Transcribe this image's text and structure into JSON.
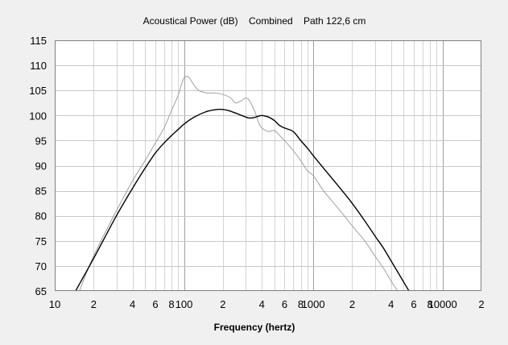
{
  "chart_data": {
    "type": "line",
    "title": "Acoustical Power (dB)    Combined    Path 122,6 cm",
    "xlabel": "Frequency (hertz)",
    "ylabel": "",
    "xscale": "log",
    "xlim": [
      10,
      20000
    ],
    "ylim": [
      65,
      115
    ],
    "grid": true,
    "legend": "none",
    "yticks": [
      "65",
      "70",
      "75",
      "80",
      "85",
      "90",
      "95",
      "100",
      "105",
      "110",
      "115"
    ],
    "xticks": [
      {
        "value": 10,
        "label": "10"
      },
      {
        "value": 20,
        "label": "2"
      },
      {
        "value": 40,
        "label": "4"
      },
      {
        "value": 60,
        "label": "6"
      },
      {
        "value": 80,
        "label": "8"
      },
      {
        "value": 100,
        "label": "100"
      },
      {
        "value": 200,
        "label": "2"
      },
      {
        "value": 400,
        "label": "4"
      },
      {
        "value": 600,
        "label": "6"
      },
      {
        "value": 800,
        "label": "8"
      },
      {
        "value": 1000,
        "label": "1000"
      },
      {
        "value": 2000,
        "label": "2"
      },
      {
        "value": 4000,
        "label": "4"
      },
      {
        "value": 6000,
        "label": "6"
      },
      {
        "value": 8000,
        "label": "8"
      },
      {
        "value": 10000,
        "label": "10000"
      },
      {
        "value": 20000,
        "label": "2"
      }
    ],
    "series": [
      {
        "color": "#a0a0a0",
        "x": [
          15.5,
          20,
          30,
          40,
          50,
          60,
          70,
          80,
          90,
          95,
          100,
          105,
          110,
          120,
          130,
          150,
          170,
          200,
          230,
          250,
          280,
          300,
          320,
          350,
          380,
          400,
          450,
          500,
          550,
          600,
          700,
          800,
          900,
          1000,
          1200,
          1500,
          1800,
          2000,
          2500,
          3000,
          3500,
          4000,
          4500
        ],
        "y": [
          65,
          72,
          81,
          87,
          91,
          94.5,
          97.5,
          101,
          104,
          106,
          107.5,
          107.8,
          107.5,
          106,
          105,
          104.5,
          104.5,
          104.2,
          103.5,
          102.5,
          103,
          103.5,
          103,
          101,
          98.5,
          97.5,
          96.8,
          97,
          96,
          95,
          93,
          91,
          89,
          88,
          85,
          82,
          79.5,
          78,
          75,
          72,
          69.5,
          67,
          65
        ]
      },
      {
        "color": "#000000",
        "x": [
          14.5,
          20,
          30,
          40,
          50,
          60,
          70,
          80,
          90,
          100,
          120,
          150,
          180,
          200,
          220,
          250,
          280,
          300,
          320,
          350,
          380,
          400,
          450,
          500,
          550,
          600,
          700,
          800,
          900,
          1000,
          1200,
          1500,
          1800,
          2000,
          2500,
          3000,
          3500,
          4000,
          4500,
          5000,
          5500
        ],
        "y": [
          65,
          71.5,
          80,
          85.5,
          89.5,
          92.5,
          94.5,
          96,
          97.2,
          98.3,
          99.7,
          100.8,
          101.2,
          101.2,
          101,
          100.5,
          100,
          99.7,
          99.5,
          99.6,
          99.9,
          100,
          99.7,
          99,
          98,
          97.5,
          96.8,
          95,
          93.5,
          92,
          89.5,
          86.5,
          84,
          82.5,
          79,
          76,
          73.5,
          71,
          68.8,
          66.8,
          65
        ]
      }
    ]
  }
}
